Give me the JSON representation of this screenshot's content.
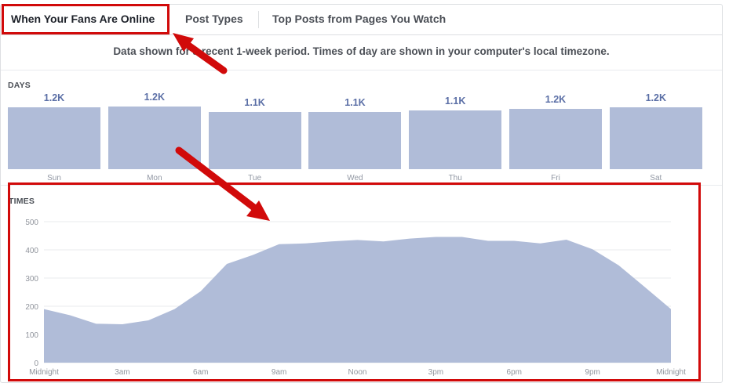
{
  "tabs": [
    {
      "label": "When Your Fans Are Online",
      "active": true
    },
    {
      "label": "Post Types",
      "active": false
    },
    {
      "label": "Top Posts from Pages You Watch",
      "active": false
    }
  ],
  "subtitle": "Data shown for a recent 1-week period. Times of day are shown in your computer's local timezone.",
  "days_section": {
    "label": "DAYS",
    "days": [
      {
        "name": "Sun",
        "value_label": "1.2K",
        "value": 1200
      },
      {
        "name": "Mon",
        "value_label": "1.2K",
        "value": 1210
      },
      {
        "name": "Tue",
        "value_label": "1.1K",
        "value": 1100
      },
      {
        "name": "Wed",
        "value_label": "1.1K",
        "value": 1110
      },
      {
        "name": "Thu",
        "value_label": "1.1K",
        "value": 1140
      },
      {
        "name": "Fri",
        "value_label": "1.2K",
        "value": 1170
      },
      {
        "name": "Sat",
        "value_label": "1.2K",
        "value": 1190
      }
    ]
  },
  "times_section": {
    "label": "TIMES"
  },
  "colors": {
    "bar_fill": "#b0bcd8",
    "value_text": "#5b6fa6",
    "highlight": "#d10a0a"
  },
  "chart_data": {
    "type": "area",
    "title": "",
    "xlabel": "",
    "ylabel": "",
    "ylim": [
      0,
      500
    ],
    "yticks": [
      0,
      100,
      200,
      300,
      400,
      500
    ],
    "xticks": [
      {
        "hour": 0,
        "label": "Midnight"
      },
      {
        "hour": 3,
        "label": "3am"
      },
      {
        "hour": 6,
        "label": "6am"
      },
      {
        "hour": 9,
        "label": "9am"
      },
      {
        "hour": 12,
        "label": "Noon"
      },
      {
        "hour": 15,
        "label": "3pm"
      },
      {
        "hour": 18,
        "label": "6pm"
      },
      {
        "hour": 21,
        "label": "9pm"
      },
      {
        "hour": 24,
        "label": "Midnight"
      }
    ],
    "x": [
      0,
      1,
      2,
      3,
      4,
      5,
      6,
      7,
      8,
      9,
      10,
      11,
      12,
      13,
      14,
      15,
      16,
      17,
      18,
      19,
      20,
      21,
      22,
      23,
      24
    ],
    "values": [
      190,
      168,
      138,
      136,
      150,
      190,
      253,
      350,
      382,
      420,
      423,
      430,
      435,
      430,
      440,
      446,
      446,
      432,
      432,
      423,
      436,
      402,
      345,
      268,
      190
    ],
    "grid": true
  }
}
